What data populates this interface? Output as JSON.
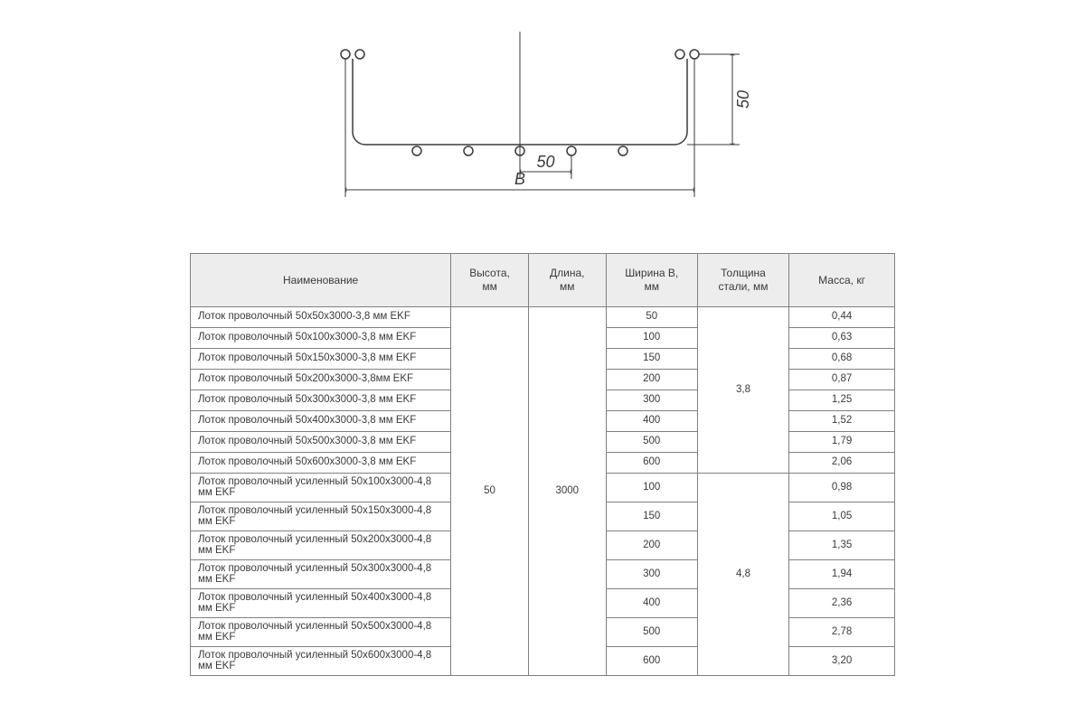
{
  "diagram": {
    "width_label": "B",
    "height_dim": "50",
    "pitch_dim": "50",
    "stroke_color": "#3a3a3a",
    "stroke_width": 1.5,
    "font_family": "Arial",
    "dim_fontsize": 18
  },
  "table": {
    "header_bg": "#ededed",
    "border_color": "#808080",
    "columns": [
      {
        "key": "name",
        "label": "Наименование",
        "width_pct": 37
      },
      {
        "key": "height",
        "label": "Высота,\nмм",
        "width_pct": 11
      },
      {
        "key": "length",
        "label": "Длина,\nмм",
        "width_pct": 11
      },
      {
        "key": "width",
        "label": "Ширина В,\nмм",
        "width_pct": 13
      },
      {
        "key": "thick",
        "label": "Толщина\nстали, мм",
        "width_pct": 13
      },
      {
        "key": "mass",
        "label": "Масса, кг",
        "width_pct": 15
      }
    ],
    "height_value": "50",
    "length_value": "3000",
    "groups": [
      {
        "thickness": "3,8",
        "rows": [
          {
            "name": "Лоток проволочный 50х50х3000-3,8 мм EKF",
            "width": "50",
            "mass": "0,44"
          },
          {
            "name": "Лоток проволочный 50х100х3000-3,8 мм EKF",
            "width": "100",
            "mass": "0,63"
          },
          {
            "name": "Лоток проволочный 50х150х3000-3,8 мм EKF",
            "width": "150",
            "mass": "0,68"
          },
          {
            "name": "Лоток проволочный 50х200х3000-3,8мм EKF",
            "width": "200",
            "mass": "0,87"
          },
          {
            "name": "Лоток проволочный 50х300х3000-3,8 мм EKF",
            "width": "300",
            "mass": "1,25"
          },
          {
            "name": "Лоток проволочный 50х400х3000-3,8 мм EKF",
            "width": "400",
            "mass": "1,52"
          },
          {
            "name": "Лоток проволочный 50х500х3000-3,8 мм EKF",
            "width": "500",
            "mass": "1,79"
          },
          {
            "name": "Лоток проволочный 50х600х3000-3,8 мм EKF",
            "width": "600",
            "mass": "2,06"
          }
        ]
      },
      {
        "thickness": "4,8",
        "rows": [
          {
            "name": "Лоток проволочный усиленный 50х100х3000-4,8 мм EKF",
            "width": "100",
            "mass": "0,98"
          },
          {
            "name": "Лоток проволочный усиленный 50х150х3000-4,8 мм EKF",
            "width": "150",
            "mass": "1,05"
          },
          {
            "name": "Лоток проволочный усиленный 50х200х3000-4,8 мм EKF",
            "width": "200",
            "mass": "1,35"
          },
          {
            "name": "Лоток проволочный усиленный 50х300х3000-4,8 мм EKF",
            "width": "300",
            "mass": "1,94"
          },
          {
            "name": "Лоток проволочный усиленный 50х400х3000-4,8 мм EKF",
            "width": "400",
            "mass": "2,36"
          },
          {
            "name": "Лоток проволочный усиленный 50х500х3000-4,8 мм EKF",
            "width": "500",
            "mass": "2,78"
          },
          {
            "name": "Лоток проволочный усиленный 50х600х3000-4,8 мм EKF",
            "width": "600",
            "mass": "3,20"
          }
        ]
      }
    ]
  }
}
